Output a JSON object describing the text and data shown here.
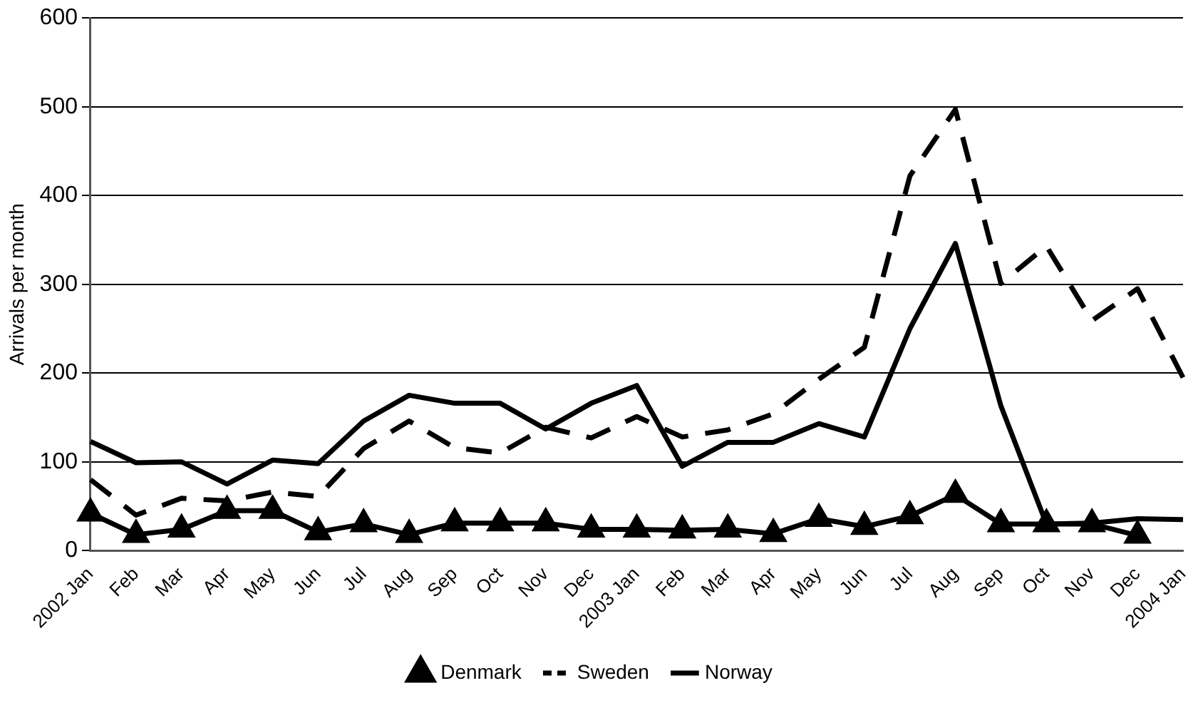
{
  "chart_data": {
    "type": "line",
    "ylabel": "Arrivals per month",
    "categories": [
      "2002 Jan",
      "Feb",
      "Mar",
      "Apr",
      "May",
      "Jun",
      "Jul",
      "Aug",
      "Sep",
      "Oct",
      "Nov",
      "Dec",
      "2003 Jan",
      "Feb",
      "Mar",
      "Apr",
      "May",
      "Jun",
      "Jul",
      "Aug",
      "Sep",
      "Oct",
      "Nov",
      "Dec",
      "2004 Jan"
    ],
    "series": [
      {
        "name": "Denmark",
        "color": "#000000",
        "marker": "triangle",
        "line_style": "solid",
        "values": [
          42,
          18,
          24,
          45,
          45,
          21,
          30,
          18,
          31,
          31,
          31,
          24,
          24,
          23,
          24,
          19,
          36,
          27,
          39,
          63,
          30,
          30,
          30,
          17,
          null
        ]
      },
      {
        "name": "Sweden",
        "color": "#000000",
        "marker": "none",
        "line_style": "dashed",
        "values": [
          80,
          40,
          59,
          56,
          66,
          61,
          115,
          146,
          116,
          110,
          139,
          127,
          151,
          128,
          136,
          154,
          193,
          229,
          422,
          497,
          301,
          343,
          259,
          295,
          195
        ]
      },
      {
        "name": "Norway",
        "color": "#000000",
        "marker": "none",
        "line_style": "solid",
        "values": [
          123,
          99,
          100,
          75,
          102,
          98,
          146,
          175,
          166,
          166,
          137,
          166,
          186,
          95,
          122,
          122,
          143,
          128,
          250,
          346,
          163,
          30,
          31,
          36,
          35
        ]
      }
    ],
    "ylim": [
      0,
      600
    ],
    "yticks": [
      0,
      100,
      200,
      300,
      400,
      500,
      600
    ],
    "grid": "y",
    "legend": "bottom"
  }
}
